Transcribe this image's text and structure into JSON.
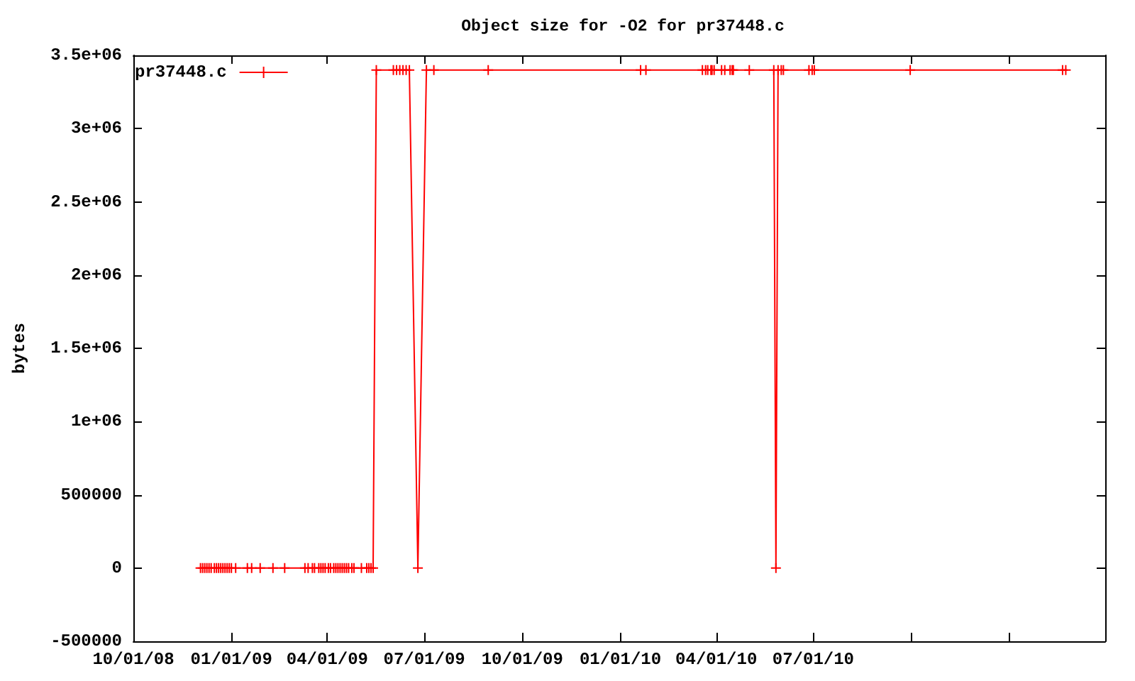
{
  "chart_data": {
    "type": "line",
    "title": "Object size for -O2 for pr37448.c",
    "ylabel": "bytes",
    "x": [
      "2008-12-03",
      "2008-12-05",
      "2008-12-07",
      "2008-12-09",
      "2008-12-11",
      "2008-12-13",
      "2008-12-16",
      "2008-12-18",
      "2008-12-20",
      "2008-12-22",
      "2008-12-24",
      "2008-12-26",
      "2008-12-28",
      "2008-12-30",
      "2009-01-01",
      "2009-01-05",
      "2009-01-16",
      "2009-01-20",
      "2009-01-28",
      "2009-02-09",
      "2009-02-20",
      "2009-03-11",
      "2009-03-14",
      "2009-03-18",
      "2009-03-20",
      "2009-03-24",
      "2009-03-26",
      "2009-03-28",
      "2009-03-30",
      "2009-04-02",
      "2009-04-04",
      "2009-04-07",
      "2009-04-09",
      "2009-04-11",
      "2009-04-13",
      "2009-04-15",
      "2009-04-17",
      "2009-04-19",
      "2009-04-21",
      "2009-04-24",
      "2009-04-26",
      "2009-05-03",
      "2009-05-08",
      "2009-05-10",
      "2009-05-12",
      "2009-05-14",
      "2009-05-17",
      "2009-06-02",
      "2009-06-05",
      "2009-06-08",
      "2009-06-11",
      "2009-06-14",
      "2009-06-17",
      "2009-06-25",
      "2009-07-03",
      "2009-07-10",
      "2009-08-30",
      "2010-01-20",
      "2010-01-25",
      "2010-03-19",
      "2010-03-22",
      "2010-03-24",
      "2010-03-27",
      "2010-03-28",
      "2010-03-30",
      "2010-04-06",
      "2010-04-09",
      "2010-04-14",
      "2010-04-16",
      "2010-04-17",
      "2010-05-02",
      "2010-05-25",
      "2010-05-27",
      "2010-05-29",
      "2010-06-01",
      "2010-06-03",
      "2010-06-27",
      "2010-06-30",
      "2010-07-02",
      "2010-09-30",
      "2011-02-20",
      "2011-02-23"
    ],
    "series": [
      {
        "name": "pr37448.c",
        "color": "#ff0000",
        "values": [
          0,
          0,
          0,
          0,
          0,
          0,
          0,
          0,
          0,
          0,
          0,
          0,
          0,
          0,
          0,
          0,
          0,
          0,
          0,
          0,
          0,
          0,
          0,
          0,
          0,
          0,
          0,
          0,
          0,
          0,
          0,
          0,
          0,
          0,
          0,
          0,
          0,
          0,
          0,
          0,
          0,
          0,
          0,
          0,
          0,
          0,
          3400000,
          3400000,
          3400000,
          3400000,
          3400000,
          3400000,
          3400000,
          0,
          3400000,
          3400000,
          3400000,
          3400000,
          3400000,
          3400000,
          3400000,
          3400000,
          3400000,
          3400000,
          3400000,
          3400000,
          3400000,
          3400000,
          3400000,
          3400000,
          3400000,
          3400000,
          0,
          3400000,
          3400000,
          3400000,
          3400000,
          3400000,
          3400000,
          3400000,
          3400000,
          3400000
        ]
      }
    ],
    "xlim": [
      "2008-10-01",
      "2011-04-01"
    ],
    "xticks": [
      {
        "value": "2008-10-01",
        "label": "10/01/08"
      },
      {
        "value": "2009-01-01",
        "label": "01/01/09"
      },
      {
        "value": "2009-04-01",
        "label": "04/01/09"
      },
      {
        "value": "2009-07-01",
        "label": "07/01/09"
      },
      {
        "value": "2009-10-01",
        "label": "10/01/09"
      },
      {
        "value": "2010-01-01",
        "label": "01/01/10"
      },
      {
        "value": "2010-04-01",
        "label": "04/01/10"
      },
      {
        "value": "2010-07-01",
        "label": "07/01/10"
      },
      {
        "value": "2010-10-01",
        "label": null
      },
      {
        "value": "2011-01-01",
        "label": null
      },
      {
        "value": "2011-04-01",
        "label": null
      }
    ],
    "ylim": [
      -500000,
      3500000
    ],
    "yticks": [
      -500000,
      0,
      500000,
      {
        "value": 1000000,
        "label": "1e+06"
      },
      {
        "value": 1500000,
        "label": "1.5e+06"
      },
      {
        "value": 2000000,
        "label": "2e+06"
      },
      {
        "value": 2500000,
        "label": "2.5e+06"
      },
      {
        "value": 3000000,
        "label": "3e+06"
      },
      {
        "value": 3500000,
        "label": "3.5e+06"
      }
    ],
    "legend": "top left",
    "marker": "cross"
  }
}
